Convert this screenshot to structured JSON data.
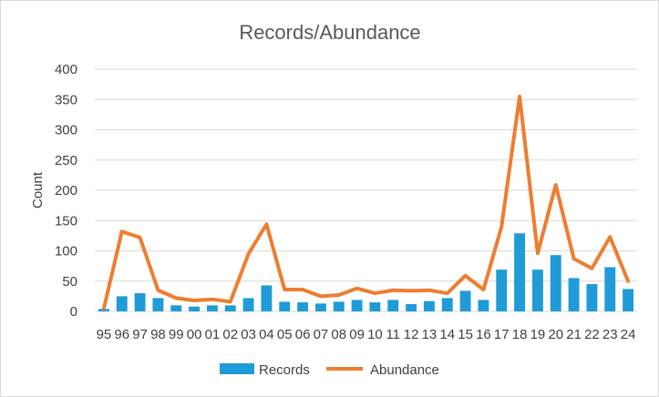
{
  "chart_data": {
    "type": "bar",
    "title": "Records/Abundance",
    "ylabel": "Count",
    "xlabel": "",
    "ylim": [
      0,
      400
    ],
    "yticks": [
      0,
      50,
      100,
      150,
      200,
      250,
      300,
      350,
      400
    ],
    "grid": true,
    "legend_position": "bottom",
    "categories": [
      "95",
      "96",
      "97",
      "98",
      "99",
      "00",
      "01",
      "02",
      "03",
      "04",
      "05",
      "06",
      "07",
      "08",
      "09",
      "10",
      "11",
      "12",
      "13",
      "14",
      "15",
      "16",
      "17",
      "18",
      "19",
      "20",
      "21",
      "22",
      "23",
      "24"
    ],
    "series": [
      {
        "name": "Records",
        "type": "bar",
        "color": "#1f9bd7",
        "values": [
          4,
          25,
          30,
          22,
          10,
          8,
          10,
          10,
          22,
          43,
          16,
          15,
          13,
          16,
          19,
          15,
          19,
          12,
          17,
          22,
          34,
          19,
          69,
          129,
          69,
          93,
          55,
          45,
          73,
          37
        ]
      },
      {
        "name": "Abundance",
        "type": "line",
        "color": "#ee7d31",
        "values": [
          5,
          132,
          122,
          35,
          22,
          18,
          20,
          16,
          95,
          144,
          36,
          36,
          25,
          27,
          38,
          30,
          35,
          34,
          35,
          30,
          59,
          36,
          140,
          355,
          96,
          209,
          87,
          71,
          123,
          50
        ]
      }
    ]
  }
}
